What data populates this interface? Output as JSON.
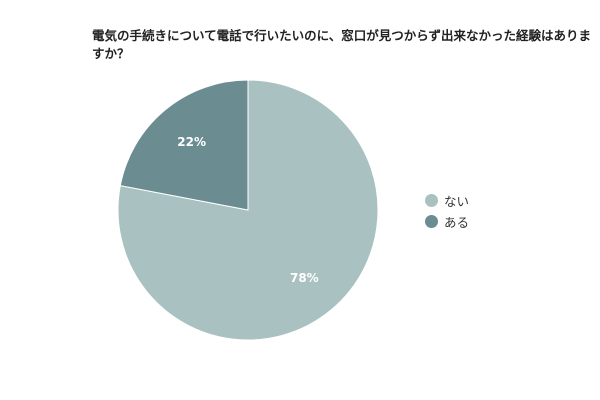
{
  "chart_data": {
    "type": "pie",
    "title": "電気の手続きについて電話で行いたいのに、窓口が見つからず出来なかった経験はありますか？",
    "slices": [
      {
        "label": "ない",
        "value": 78,
        "display": "78%",
        "color": "#a9c1c1"
      },
      {
        "label": "ある",
        "value": 22,
        "display": "22%",
        "color": "#6b8d91"
      }
    ],
    "legend_position": "right"
  }
}
